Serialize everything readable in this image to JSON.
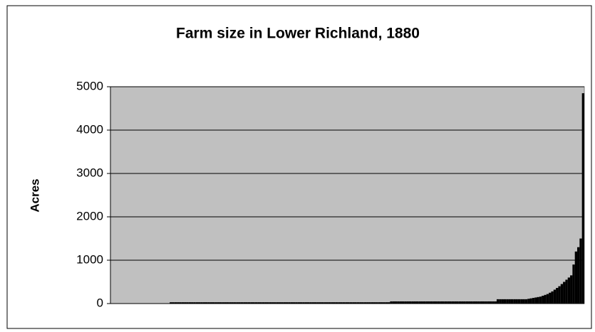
{
  "chart_data": {
    "type": "bar",
    "title": "Farm size in Lower Richland, 1880",
    "y_label": "Acres",
    "categories": [
      null,
      null,
      null,
      null,
      null,
      null,
      null,
      null,
      null,
      null,
      null,
      null,
      null,
      null,
      null,
      null,
      null,
      null,
      null,
      null,
      null,
      null,
      null,
      null,
      null,
      null,
      null,
      null,
      null,
      null,
      null,
      null,
      null,
      null,
      null,
      null,
      null,
      null,
      null,
      null,
      null,
      null,
      null,
      null,
      null,
      null,
      null,
      null,
      null,
      null,
      null,
      null,
      null,
      null,
      null,
      null,
      null,
      null,
      null,
      null,
      null,
      null,
      null,
      null,
      null,
      null,
      null,
      null,
      null,
      null,
      null,
      null,
      null,
      null,
      null,
      null,
      null,
      null,
      null,
      null,
      null,
      null,
      null,
      null,
      null,
      null,
      null,
      null,
      null,
      null,
      null,
      null,
      null,
      null,
      null,
      null,
      null,
      null,
      null,
      null,
      null,
      null,
      null,
      null,
      null,
      null,
      null,
      null,
      null,
      null,
      null,
      null,
      null,
      null,
      null,
      null,
      null,
      null,
      null,
      null,
      null,
      null,
      null,
      null,
      null,
      null,
      null,
      null,
      null,
      null,
      null,
      null,
      null,
      null,
      null,
      null,
      null,
      null,
      null,
      null,
      null,
      null,
      null,
      null,
      null,
      null,
      null,
      null,
      null,
      null,
      null,
      null,
      null,
      null,
      null,
      null,
      null,
      null,
      null,
      null,
      null,
      null,
      null,
      null,
      null,
      null,
      null,
      null,
      null,
      null,
      null,
      null,
      null,
      null,
      null,
      null,
      null,
      null,
      null,
      null,
      null,
      null,
      null,
      null,
      null,
      null,
      null,
      null,
      null,
      null,
      null,
      null,
      null,
      null,
      null,
      null,
      null,
      null,
      null,
      null
    ],
    "values": [
      0,
      0,
      0,
      0,
      0,
      0,
      0,
      0,
      0,
      0,
      0,
      0,
      0,
      0,
      0,
      0,
      0,
      0,
      0,
      0,
      0,
      0,
      0,
      0,
      0,
      30,
      30,
      30,
      30,
      30,
      30,
      30,
      30,
      30,
      30,
      30,
      30,
      30,
      30,
      30,
      30,
      30,
      30,
      30,
      30,
      30,
      30,
      30,
      30,
      30,
      30,
      30,
      30,
      30,
      30,
      30,
      30,
      30,
      30,
      30,
      30,
      30,
      30,
      30,
      30,
      30,
      30,
      30,
      30,
      30,
      30,
      30,
      30,
      30,
      30,
      30,
      30,
      30,
      30,
      30,
      30,
      30,
      30,
      30,
      30,
      30,
      30,
      30,
      30,
      30,
      30,
      30,
      30,
      30,
      30,
      30,
      30,
      30,
      30,
      30,
      30,
      30,
      30,
      30,
      30,
      30,
      30,
      30,
      30,
      30,
      30,
      30,
      30,
      30,
      30,
      30,
      30,
      30,
      50,
      50,
      50,
      50,
      50,
      50,
      50,
      50,
      50,
      50,
      50,
      50,
      50,
      50,
      50,
      50,
      50,
      50,
      50,
      50,
      50,
      50,
      50,
      50,
      50,
      50,
      50,
      50,
      50,
      50,
      50,
      50,
      50,
      50,
      50,
      50,
      50,
      50,
      50,
      50,
      50,
      50,
      50,
      50,
      50,
      100,
      100,
      100,
      100,
      100,
      100,
      100,
      100,
      100,
      100,
      100,
      100,
      100,
      110,
      120,
      130,
      140,
      150,
      160,
      180,
      200,
      220,
      250,
      280,
      320,
      360,
      400,
      450,
      500,
      550,
      600,
      650,
      900,
      1200,
      1300,
      1500,
      4850
    ],
    "color": "#000000",
    "plot_background": "#c0c0c0",
    "ylim": [
      0,
      5000
    ],
    "yticks": [
      0,
      1000,
      2000,
      3000,
      4000,
      5000
    ],
    "grid": true
  }
}
